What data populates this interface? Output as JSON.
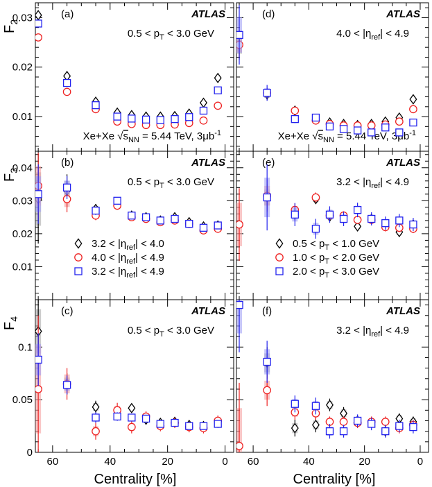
{
  "figure": {
    "xlabel": "Centrality [%]",
    "x_ticks": [
      60,
      40,
      20,
      0
    ],
    "x_range": [
      66,
      -3
    ],
    "atlas_label": "ATLAS",
    "energy_label": "Xe+Xe √sNN = 5.44 TeV, 3μb⁻¹",
    "energy_parts": {
      "pre": "Xe+Xe ",
      "s": "s",
      "sub": "NN",
      "post": " = 5.44 TeV, 3μb",
      "sup": "-1"
    },
    "colors": {
      "black": "#000000",
      "red": "#ee2222",
      "blue": "#2222ee",
      "gray": "#888888"
    }
  },
  "chart_data": [
    {
      "type": "scatter",
      "letter": "(a)",
      "row": 0,
      "col": 0,
      "ylabel_main": "F",
      "ylabel_sub": "2",
      "ylim": [
        0.003,
        0.033
      ],
      "y_ticks": [
        0.01,
        0.02,
        0.03
      ],
      "y_tick_labels": [
        "0.01",
        "0.02",
        "0.03"
      ],
      "annotation": {
        "pre": "0.5 < p",
        "sub": "T",
        "post": " < 3.0 GeV"
      },
      "show_energy": true,
      "series": [
        {
          "name": "3.2 < |ηref| < 4.0",
          "marker": "diamond",
          "color": "black",
          "x": [
            65,
            55,
            45,
            37.5,
            32.5,
            27.5,
            22.5,
            17.5,
            12.5,
            7.5,
            2.5
          ],
          "y": [
            0.0305,
            0.0182,
            0.013,
            0.0108,
            0.0103,
            0.01,
            0.01,
            0.0101,
            0.0106,
            0.0128,
            0.0178
          ],
          "err": [
            0.0008,
            0.0005,
            0.0004,
            0.0003,
            0.0003,
            0.0003,
            0.0003,
            0.0003,
            0.0003,
            0.0004,
            0.0005
          ]
        },
        {
          "name": "4.0 < |ηref| < 4.9",
          "marker": "circle",
          "color": "red",
          "x": [
            65,
            55,
            45,
            37.5,
            32.5,
            27.5,
            22.5,
            17.5,
            12.5,
            7.5,
            2.5
          ],
          "y": [
            0.026,
            0.015,
            0.0115,
            0.009,
            0.0085,
            0.0083,
            0.0083,
            0.0084,
            0.0087,
            0.0092,
            0.0122
          ],
          "err": [
            0.0007,
            0.0004,
            0.0003,
            0.0003,
            0.0003,
            0.0003,
            0.0003,
            0.0003,
            0.0003,
            0.0003,
            0.0004
          ]
        },
        {
          "name": "3.2 < |ηref| < 4.9",
          "marker": "square",
          "color": "blue",
          "x": [
            65,
            55,
            45,
            37.5,
            32.5,
            27.5,
            22.5,
            17.5,
            12.5,
            7.5,
            2.5
          ],
          "y": [
            0.0288,
            0.0168,
            0.0123,
            0.01,
            0.0096,
            0.0094,
            0.0093,
            0.0095,
            0.0099,
            0.0112,
            0.0153
          ],
          "err": [
            0.0008,
            0.0005,
            0.0004,
            0.0003,
            0.0003,
            0.0003,
            0.0003,
            0.0003,
            0.0003,
            0.0003,
            0.0004
          ]
        }
      ]
    },
    {
      "type": "scatter",
      "letter": "(d)",
      "row": 0,
      "col": 1,
      "ylim": [
        0.003,
        0.033
      ],
      "annotation": {
        "pre": "4.0 < |η",
        "sub": "ref",
        "post": "| < 4.9"
      },
      "show_energy": true,
      "series": [
        {
          "name": "0.5 < pT < 1.0 GeV",
          "marker": "diamond",
          "color": "black",
          "x": [
            65,
            55,
            45,
            37.5,
            32.5,
            27.5,
            22.5,
            17.5,
            12.5,
            7.5,
            2.5
          ],
          "y": [
            0.0245,
            0.0145,
            0.0112,
            0.0095,
            0.0088,
            0.0085,
            0.0083,
            0.0085,
            0.009,
            0.0098,
            0.0135
          ],
          "err": [
            0.003,
            0.0012,
            0.0006,
            0.0005,
            0.0004,
            0.0004,
            0.0004,
            0.0004,
            0.0004,
            0.0005,
            0.0006
          ]
        },
        {
          "name": "1.0 < pT < 2.0 GeV",
          "marker": "circle",
          "color": "red",
          "x": [
            65,
            55,
            45,
            37.5,
            32.5,
            27.5,
            22.5,
            17.5,
            12.5,
            7.5,
            2.5
          ],
          "y": [
            0.0245,
            0.0148,
            0.0112,
            0.0092,
            0.0085,
            0.0082,
            0.0082,
            0.0082,
            0.0084,
            0.009,
            0.0115
          ],
          "err": [
            0.0025,
            0.001,
            0.0005,
            0.0004,
            0.0004,
            0.0004,
            0.0004,
            0.0004,
            0.0004,
            0.0004,
            0.0005
          ]
        },
        {
          "name": "2.0 < pT < 3.0 GeV",
          "marker": "square",
          "color": "blue",
          "x": [
            65,
            55,
            45,
            37.5,
            32.5,
            27.5,
            22.5,
            17.5,
            12.5,
            7.5,
            2.5
          ],
          "y": [
            0.0265,
            0.0148,
            0.0095,
            0.0098,
            0.008,
            0.0075,
            0.0072,
            0.0068,
            0.0078,
            0.0068,
            0.0088
          ],
          "err": [
            0.006,
            0.0016,
            0.0008,
            0.0007,
            0.0006,
            0.0006,
            0.0006,
            0.0006,
            0.0006,
            0.0006,
            0.0007
          ]
        }
      ]
    },
    {
      "type": "scatter",
      "letter": "(b)",
      "row": 1,
      "col": 0,
      "ylabel_main": "F",
      "ylabel_sub": "3",
      "ylim": [
        0.0,
        0.045
      ],
      "y_ticks": [
        0.01,
        0.02,
        0.03,
        0.04
      ],
      "y_tick_labels": [
        "0.01",
        "0.02",
        "0.03",
        "0.04"
      ],
      "annotation": {
        "pre": "0.5 < p",
        "sub": "T",
        "post": " < 3.0 GeV"
      },
      "legend": [
        {
          "marker": "diamond",
          "color": "black",
          "pre": "3.2 < |η",
          "sub": "ref",
          "post": "| < 4.0"
        },
        {
          "marker": "circle",
          "color": "red",
          "pre": "4.0 < |η",
          "sub": "ref",
          "post": "| < 4.9"
        },
        {
          "marker": "square",
          "color": "blue",
          "pre": "3.2 < |η",
          "sub": "ref",
          "post": "| < 4.9"
        }
      ],
      "series": [
        {
          "name": "3.2 < |ηref| < 4.0",
          "marker": "diamond",
          "color": "black",
          "x": [
            65,
            55,
            45,
            37.5,
            32.5,
            27.5,
            22.5,
            17.5,
            12.5,
            7.5,
            2.5
          ],
          "y": [
            0.0305,
            0.033,
            0.0275,
            0.0295,
            0.0255,
            0.025,
            0.024,
            0.025,
            0.0235,
            0.0222,
            0.0225
          ],
          "err": [
            0.0135,
            0.005,
            0.0015,
            0.0012,
            0.001,
            0.001,
            0.001,
            0.001,
            0.001,
            0.001,
            0.001
          ]
        },
        {
          "name": "4.0 < |ηref| < 4.9",
          "marker": "circle",
          "color": "red",
          "x": [
            65,
            55,
            45,
            37.5,
            32.5,
            27.5,
            22.5,
            17.5,
            12.5,
            7.5,
            2.5
          ],
          "y": [
            0.0345,
            0.0305,
            0.0255,
            0.0285,
            0.025,
            0.0245,
            0.0235,
            0.024,
            0.023,
            0.021,
            0.0215
          ],
          "err": [
            0.01,
            0.004,
            0.0014,
            0.0012,
            0.001,
            0.001,
            0.001,
            0.001,
            0.001,
            0.001,
            0.001
          ]
        },
        {
          "name": "3.2 < |ηref| < 4.9",
          "marker": "square",
          "color": "blue",
          "x": [
            65,
            55,
            45,
            37.5,
            32.5,
            27.5,
            22.5,
            17.5,
            12.5,
            7.5,
            2.5
          ],
          "y": [
            0.032,
            0.034,
            0.027,
            0.03,
            0.0255,
            0.025,
            0.024,
            0.0245,
            0.023,
            0.0218,
            0.0225
          ],
          "err": [
            0.009,
            0.0035,
            0.0013,
            0.0011,
            0.0009,
            0.0009,
            0.0009,
            0.0009,
            0.0009,
            0.0009,
            0.0009
          ]
        }
      ]
    },
    {
      "type": "scatter",
      "letter": "(e)",
      "row": 1,
      "col": 1,
      "ylim": [
        0.0,
        0.045
      ],
      "annotation": {
        "pre": "3.2 < |η",
        "sub": "ref",
        "post": "| < 4.9"
      },
      "legend": [
        {
          "marker": "diamond",
          "color": "black",
          "pre": "0.5 < p",
          "sub": "T",
          "post": " < 1.0 GeV"
        },
        {
          "marker": "circle",
          "color": "red",
          "pre": "1.0 < p",
          "sub": "T",
          "post": " < 2.0 GeV"
        },
        {
          "marker": "square",
          "color": "blue",
          "pre": "2.0 < p",
          "sub": "T",
          "post": " < 3.0 GeV"
        }
      ],
      "series": [
        {
          "name": "0.5 < pT < 1.0 GeV",
          "marker": "diamond",
          "color": "black",
          "x": [
            55,
            45,
            37.5,
            32.5,
            27.5,
            22.5,
            17.5,
            12.5,
            7.5,
            2.5
          ],
          "y": [
            0.031,
            0.0262,
            0.0305,
            0.0252,
            0.0252,
            0.0222,
            0.0245,
            0.0225,
            0.0205,
            0.0228
          ],
          "err": [
            0.004,
            0.002,
            0.0015,
            0.0015,
            0.0014,
            0.0014,
            0.0014,
            0.0014,
            0.0014,
            0.0014
          ]
        },
        {
          "name": "1.0 < pT < 2.0 GeV",
          "marker": "circle",
          "color": "red",
          "x": [
            65,
            55,
            45,
            37.5,
            32.5,
            27.5,
            22.5,
            17.5,
            12.5,
            7.5,
            2.5
          ],
          "y": [
            0.0228,
            0.0315,
            0.0272,
            0.031,
            0.0255,
            0.0255,
            0.0242,
            0.0242,
            0.022,
            0.0218,
            0.0215
          ],
          "err": [
            0.011,
            0.005,
            0.002,
            0.0015,
            0.0014,
            0.0013,
            0.0013,
            0.0013,
            0.0013,
            0.0013,
            0.0013
          ]
        },
        {
          "name": "2.0 < pT < 3.0 GeV",
          "marker": "square",
          "color": "blue",
          "x": [
            55,
            45,
            37.5,
            32.5,
            27.5,
            22.5,
            17.5,
            12.5,
            7.5,
            2.5
          ],
          "y": [
            0.031,
            0.0258,
            0.0215,
            0.0258,
            0.0245,
            0.0272,
            0.0245,
            0.0232,
            0.024,
            0.0228
          ],
          "err": [
            0.01,
            0.0035,
            0.003,
            0.0025,
            0.0022,
            0.0022,
            0.002,
            0.002,
            0.002,
            0.002
          ]
        }
      ]
    },
    {
      "type": "scatter",
      "letter": "(c)",
      "row": 2,
      "col": 0,
      "ylabel_main": "F",
      "ylabel_sub": "4",
      "ylim": [
        0.0,
        0.145
      ],
      "y_ticks": [
        0.0,
        0.05,
        0.1
      ],
      "y_tick_labels": [
        "0",
        "0.05",
        "0.1"
      ],
      "annotation": {
        "pre": "0.5 < p",
        "sub": "T",
        "post": " < 3.0 GeV"
      },
      "series": [
        {
          "name": "3.2 < |ηref| < 4.0",
          "marker": "diamond",
          "color": "black",
          "x": [
            65,
            55,
            45,
            37.5,
            32.5,
            27.5,
            22.5,
            17.5,
            12.5,
            7.5,
            2.5
          ],
          "y": [
            0.115,
            0.065,
            0.043,
            0.035,
            0.042,
            0.031,
            0.028,
            0.029,
            0.026,
            0.025,
            0.028
          ],
          "err": [
            0.035,
            0.01,
            0.006,
            0.005,
            0.004,
            0.004,
            0.004,
            0.004,
            0.004,
            0.004,
            0.004
          ]
        },
        {
          "name": "4.0 < |ηref| < 4.9",
          "marker": "circle",
          "color": "red",
          "x": [
            65,
            55,
            45,
            37.5,
            32.5,
            27.5,
            22.5,
            17.5,
            12.5,
            7.5,
            2.5
          ],
          "y": [
            0.06,
            0.065,
            0.02,
            0.04,
            0.024,
            0.034,
            0.025,
            0.028,
            0.024,
            0.023,
            0.03
          ],
          "err": [
            0.07,
            0.015,
            0.008,
            0.007,
            0.006,
            0.005,
            0.005,
            0.005,
            0.005,
            0.005,
            0.005
          ]
        },
        {
          "name": "3.2 < |ηref| < 4.9",
          "marker": "square",
          "color": "blue",
          "x": [
            65,
            55,
            45,
            37.5,
            32.5,
            27.5,
            22.5,
            17.5,
            12.5,
            7.5,
            2.5
          ],
          "y": [
            0.088,
            0.064,
            0.033,
            0.034,
            0.033,
            0.032,
            0.027,
            0.028,
            0.025,
            0.025,
            0.027
          ],
          "err": [
            0.025,
            0.009,
            0.005,
            0.004,
            0.0035,
            0.0035,
            0.0035,
            0.0035,
            0.0035,
            0.0035,
            0.0035
          ]
        }
      ]
    },
    {
      "type": "scatter",
      "letter": "(f)",
      "row": 2,
      "col": 1,
      "ylim": [
        0.0,
        0.145
      ],
      "annotation": {
        "pre": "3.2 < |η",
        "sub": "ref",
        "post": "| < 4.9"
      },
      "series": [
        {
          "name": "0.5 < pT < 1.0 GeV",
          "marker": "diamond",
          "color": "black",
          "x": [
            55,
            45,
            37.5,
            32.5,
            27.5,
            22.5,
            17.5,
            12.5,
            7.5,
            2.5
          ],
          "y": [
            0.085,
            0.023,
            0.026,
            0.045,
            0.037,
            0.03,
            0.028,
            0.02,
            0.032,
            0.029
          ],
          "err": [
            0.015,
            0.008,
            0.007,
            0.006,
            0.006,
            0.005,
            0.005,
            0.005,
            0.005,
            0.005
          ]
        },
        {
          "name": "1.0 < pT < 2.0 GeV",
          "marker": "circle",
          "color": "red",
          "x": [
            65,
            55,
            45,
            37.5,
            32.5,
            27.5,
            22.5,
            17.5,
            12.5,
            7.5,
            2.5
          ],
          "y": [
            0.006,
            0.059,
            0.038,
            0.037,
            0.029,
            0.029,
            0.028,
            0.029,
            0.029,
            0.023,
            0.026
          ],
          "err": [
            0.06,
            0.015,
            0.007,
            0.006,
            0.005,
            0.005,
            0.005,
            0.005,
            0.005,
            0.005,
            0.005
          ]
        },
        {
          "name": "2.0 < pT < 3.0 GeV",
          "marker": "square",
          "color": "blue",
          "x": [
            65,
            55,
            45,
            37.5,
            32.5,
            27.5,
            22.5,
            17.5,
            12.5,
            7.5,
            2.5
          ],
          "y": [
            0.14,
            0.086,
            0.046,
            0.044,
            0.02,
            0.02,
            0.03,
            0.027,
            0.02,
            0.025,
            0.024
          ],
          "err": [
            0.045,
            0.02,
            0.008,
            0.008,
            0.007,
            0.006,
            0.006,
            0.006,
            0.006,
            0.006,
            0.006
          ]
        }
      ]
    }
  ]
}
